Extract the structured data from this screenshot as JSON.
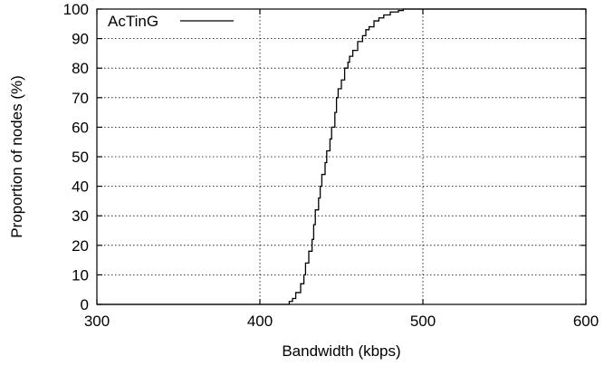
{
  "chart_data": {
    "type": "line",
    "title": "",
    "xlabel": "Bandwidth (kbps)",
    "ylabel": "Proportion of nodes (%)",
    "xlim": [
      300,
      600
    ],
    "ylim": [
      0,
      100
    ],
    "x_ticks": [
      "300",
      "400",
      "500",
      "600"
    ],
    "y_ticks": [
      "0",
      "10",
      "20",
      "30",
      "40",
      "50",
      "60",
      "70",
      "80",
      "90",
      "100"
    ],
    "grid": true,
    "legend": {
      "position": "top-left",
      "entries": [
        "AcTinG"
      ]
    },
    "series": [
      {
        "name": "AcTinG",
        "color": "#000000",
        "step": true,
        "x": [
          300,
          418,
          420,
          422,
          425,
          427,
          428,
          430,
          432,
          433,
          434,
          436,
          437,
          438,
          440,
          441,
          443,
          444,
          446,
          447,
          448,
          450,
          452,
          454,
          455,
          457,
          460,
          463,
          465,
          467,
          470,
          473,
          476,
          480,
          485,
          488,
          500,
          600
        ],
        "y": [
          0,
          1,
          2,
          4,
          7,
          10,
          14,
          18,
          22,
          27,
          32,
          36,
          40,
          44,
          48,
          52,
          56,
          60,
          65,
          70,
          73,
          76,
          80,
          82,
          84,
          86,
          89,
          91,
          93,
          94,
          96,
          97,
          98,
          99,
          99.5,
          100,
          100,
          100
        ]
      }
    ]
  }
}
